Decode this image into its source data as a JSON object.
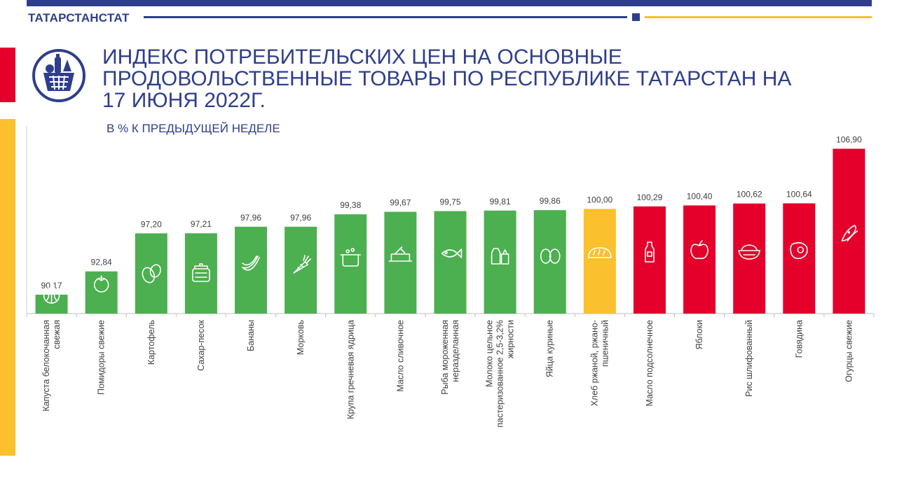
{
  "header": {
    "org": "ТАТАРСТАНСТАТ",
    "title": "ИНДЕКС ПОТРЕБИТЕЛЬСКИХ ЦЕН НА ОСНОВНЫЕ ПРОДОВОЛЬСТВЕННЫЕ ТОВАРЫ ПО РЕСПУБЛИКЕ ТАТАРСТАН НА 17 ИЮНЯ 2022г.",
    "subtitle": "В % К ПРЕДЫДУЩЕЙ НЕДЕЛЕ",
    "logo_icon": "grocery-basket-icon"
  },
  "colors": {
    "brand_blue": "#2f3e8c",
    "accent_red": "#e4002b",
    "accent_yellow": "#f3c12e",
    "decrease_green": "#4caf50",
    "unchanged_yellow": "#fbc02d",
    "increase_red": "#e4002b"
  },
  "chart_data": {
    "type": "bar",
    "title": "ИНДЕКС ПОТРЕБИТЕЛЬСКИХ ЦЕН НА ОСНОВНЫЕ ПРОДОВОЛЬСТВЕННЫЕ ТОВАРЫ ПО РЕСПУБЛИКЕ ТАТАРСТАН НА 17 ИЮНЯ 2022г.",
    "subtitle": "В % К ПРЕДЫДУЩЕЙ НЕДЕЛЕ",
    "xlabel": "",
    "ylabel": "",
    "categories": [
      "Капуста белокочанная свежая",
      "Помидоры свежие",
      "Картофель",
      "Сахар-песок",
      "Бананы",
      "Морковь",
      "Крупа гречневая ядрица",
      "Масло сливочное",
      "Рыба мороженная неразделанная",
      "Молоко цельное пастеризованное 2,5-3,2% жирности",
      "Яйца куриные",
      "Хлеб ржаной, ржано-пшеничный",
      "Масло подсолнечное",
      "Яблоки",
      "Рис шлифованный",
      "Говядина",
      "Огурцы свежие"
    ],
    "values": [
      90.17,
      92.84,
      97.2,
      97.21,
      97.96,
      97.96,
      99.38,
      99.67,
      99.75,
      99.81,
      99.86,
      100.0,
      100.29,
      100.4,
      100.62,
      100.64,
      106.9
    ],
    "value_labels": [
      "90,17",
      "92,84",
      "97,20",
      "97,21",
      "97,96",
      "97,96",
      "99,38",
      "99,67",
      "99,75",
      "99,81",
      "99,86",
      "100,00",
      "100,29",
      "100,40",
      "100,62",
      "100,64",
      "106,90"
    ],
    "category_lines": [
      [
        "Капуста белокочанная",
        "свежая"
      ],
      [
        "Помидоры свежие"
      ],
      [
        "Картофель"
      ],
      [
        "Сахар-песок"
      ],
      [
        "Бананы"
      ],
      [
        "Морковь"
      ],
      [
        "Крупа гречневая ядрица"
      ],
      [
        "Масло  сливочное"
      ],
      [
        "Рыба мороженная",
        "неразделанная"
      ],
      [
        "Молоко  цельное",
        "пастеризованное 2,5-3,2%",
        "жирности"
      ],
      [
        "Яйца куриные"
      ],
      [
        "Хлеб ржаной, ржано-",
        "пшеничный"
      ],
      [
        "Масло  подсолнечное"
      ],
      [
        "Яблоки"
      ],
      [
        "Рис шлифованный"
      ],
      [
        "Говядина"
      ],
      [
        "Огурцы свежие"
      ]
    ],
    "bar_colors": [
      "green",
      "green",
      "green",
      "green",
      "green",
      "green",
      "green",
      "green",
      "green",
      "green",
      "green",
      "yellow",
      "red",
      "red",
      "red",
      "red",
      "red"
    ],
    "icons": [
      "cabbage-icon",
      "tomato-icon",
      "potato-icon",
      "sugar-jar-icon",
      "banana-icon",
      "carrot-icon",
      "buckwheat-pot-icon",
      "butter-dish-icon",
      "fish-icon",
      "milk-bottles-icon",
      "eggs-icon",
      "bread-icon",
      "oil-bottle-icon",
      "apple-icon",
      "rice-bowl-icon",
      "beef-steak-icon",
      "cucumber-icon"
    ],
    "ylim": [
      88,
      107.5
    ],
    "grid": false,
    "legend": "none"
  }
}
